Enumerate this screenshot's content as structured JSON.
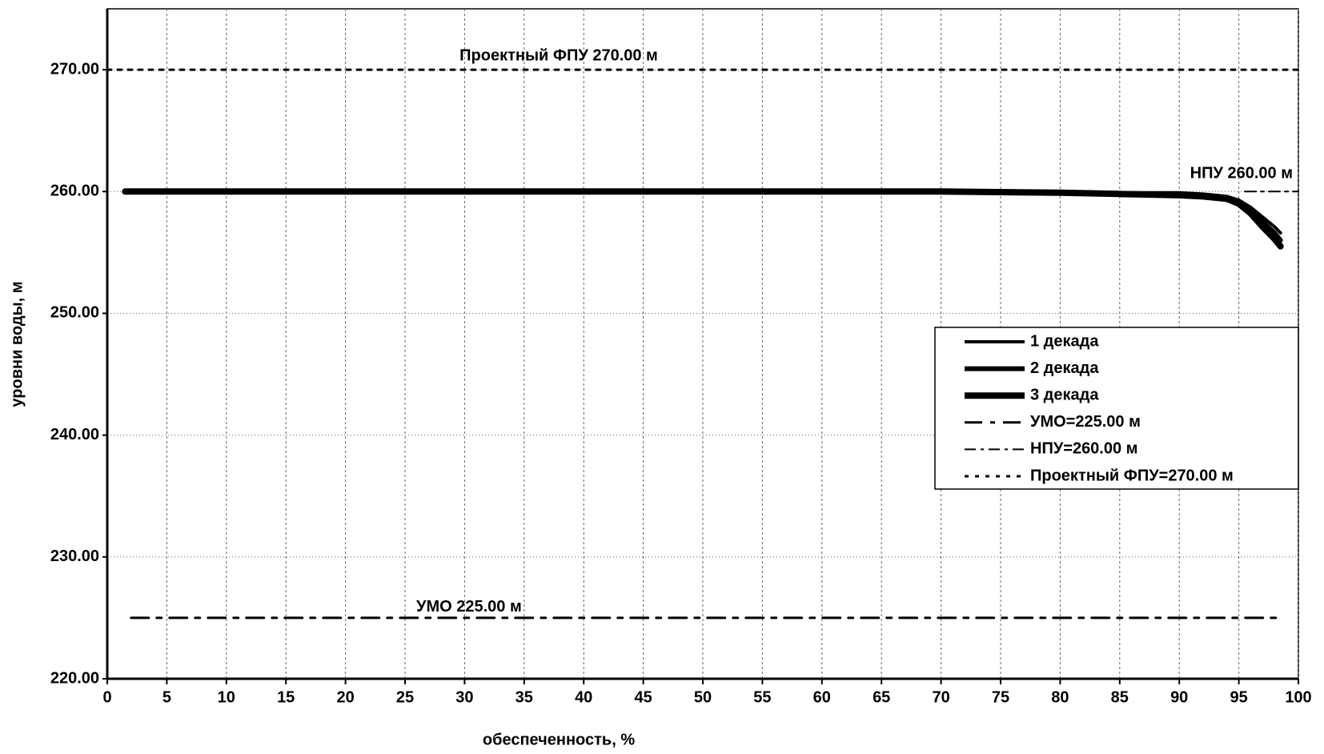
{
  "chart_data": {
    "type": "line",
    "xlabel": "обеспеченность, %",
    "ylabel": "уровни воды, м",
    "xlim": [
      0,
      100
    ],
    "xticks": [
      0,
      5,
      10,
      15,
      20,
      25,
      30,
      35,
      40,
      45,
      50,
      55,
      60,
      65,
      70,
      75,
      80,
      85,
      90,
      95,
      100
    ],
    "ylim": [
      220,
      275
    ],
    "yticks": [
      {
        "value": 220,
        "label": "220.00"
      },
      {
        "value": 230,
        "label": "230.00"
      },
      {
        "value": 240,
        "label": "240.00"
      },
      {
        "value": 250,
        "label": "250.00"
      },
      {
        "value": 260,
        "label": "260.00"
      },
      {
        "value": 270,
        "label": "270.00"
      }
    ],
    "grid": true,
    "legend": "right",
    "series": [
      {
        "name": "1 декада",
        "color": "#000000",
        "x": [
          1.5,
          10,
          20,
          30,
          40,
          50,
          60,
          70,
          80,
          85,
          90,
          92,
          94,
          95,
          96,
          97,
          98,
          98.5
        ],
        "values": [
          260,
          260,
          260,
          260,
          260,
          260,
          260,
          260,
          260,
          259.9,
          259.9,
          259.8,
          259.6,
          259.3,
          258.7,
          257.9,
          257.1,
          256.6
        ]
      },
      {
        "name": "2 декада",
        "color": "#000000",
        "x": [
          1.5,
          10,
          20,
          30,
          40,
          50,
          60,
          70,
          80,
          85,
          90,
          92,
          94,
          95,
          96,
          97,
          98,
          98.5
        ],
        "values": [
          260,
          260,
          260,
          260,
          260,
          260,
          260,
          260,
          259.9,
          259.8,
          259.8,
          259.7,
          259.5,
          259.2,
          258.5,
          257.5,
          256.6,
          256
        ]
      },
      {
        "name": "3 декада",
        "color": "#000000",
        "x": [
          1.5,
          10,
          20,
          30,
          40,
          50,
          60,
          70,
          80,
          85,
          90,
          92,
          94,
          95,
          96,
          97,
          98,
          98.5
        ],
        "values": [
          260,
          260,
          260,
          260,
          260,
          260,
          260,
          260,
          259.9,
          259.8,
          259.7,
          259.6,
          259.4,
          259,
          258.2,
          257.1,
          256.1,
          255.5
        ]
      },
      {
        "name": "УМО=225.00 м",
        "color": "#000000",
        "x": [
          2,
          98.5
        ],
        "values": [
          225,
          225
        ]
      },
      {
        "name": "НПУ=260.00 м",
        "color": "#000000",
        "x": [
          95.5,
          100
        ],
        "values": [
          260,
          260
        ]
      },
      {
        "name": "Проектный ФПУ=270.00 м",
        "color": "#000000",
        "x": [
          0,
          100
        ],
        "values": [
          270,
          270
        ]
      }
    ],
    "annotations": [
      "Проектный ФПУ 270.00 м",
      "НПУ 260.00 м",
      "УМО 225.00 м"
    ]
  }
}
